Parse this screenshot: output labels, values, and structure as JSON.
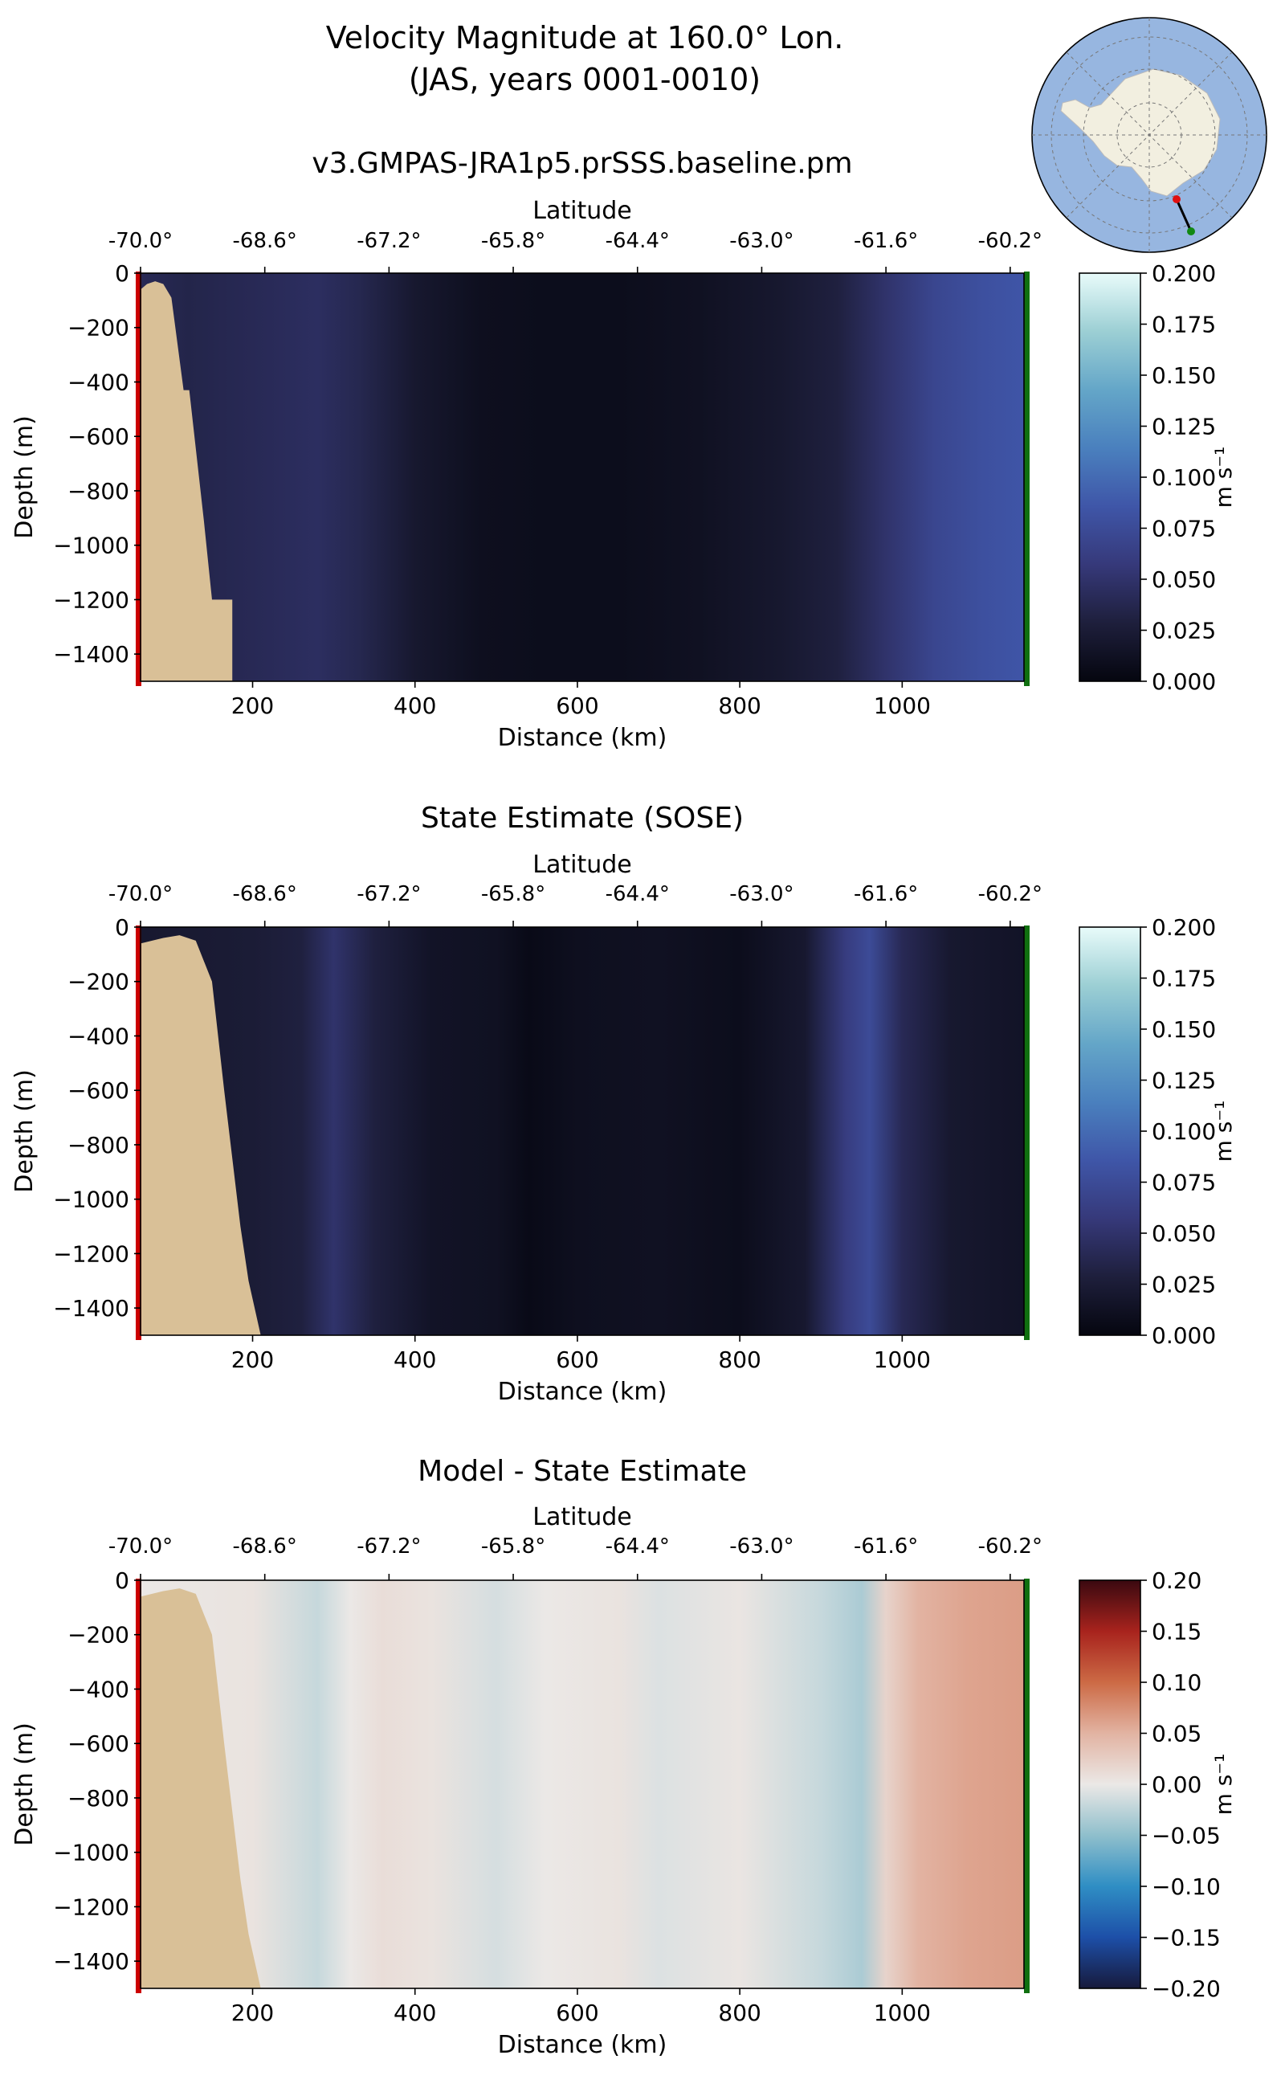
{
  "figure": {
    "title_line1": "Velocity Magnitude at 160.0° Lon.",
    "title_line2": "(JAS, years 0001-0010)"
  },
  "inset_map": {
    "description_icon": "antarctica-polar-map-icon",
    "ocean_color": "#97b6e0",
    "land_color": "#f2efe0",
    "start_marker_color": "#e01010",
    "end_marker_color": "#118811"
  },
  "colors": {
    "bathymetry": "#d9c097",
    "start_edge": "#cc0000",
    "end_edge": "#107010"
  },
  "chart_data": [
    {
      "type": "heatmap",
      "name": "model",
      "title": "v3.GMPAS-JRA1p5.prSSS.baseline.pm",
      "xlabel": "Distance (km)",
      "ylabel": "Depth (m)",
      "top_xlabel": "Latitude",
      "xlim": [
        62,
        1150
      ],
      "ylim": [
        -1500,
        0
      ],
      "x_ticks": [
        200,
        400,
        600,
        800,
        1000
      ],
      "x_tick_labels": [
        "200",
        "400",
        "600",
        "800",
        "1000"
      ],
      "y_ticks": [
        0,
        -200,
        -400,
        -600,
        -800,
        -1000,
        -1200,
        -1400
      ],
      "y_tick_labels": [
        "0",
        "−200",
        "−400",
        "−600",
        "−800",
        "−1000",
        "−1200",
        "−1400"
      ],
      "lat_ticks": [
        62,
        215,
        368,
        521,
        674,
        827,
        980,
        1133
      ],
      "lat_tick_labels": [
        "-70.0°",
        "-68.6°",
        "-67.2°",
        "-65.8°",
        "-64.4°",
        "-63.0°",
        "-61.6°",
        "-60.2°"
      ],
      "colorbar": {
        "label": "m s⁻¹",
        "vmin": 0.0,
        "vmax": 0.2,
        "ticks": [
          "0.200",
          "0.175",
          "0.150",
          "0.125",
          "0.100",
          "0.075",
          "0.050",
          "0.025",
          "0.000"
        ],
        "stops": [
          "#05060f",
          "#1e1f3c",
          "#36397a",
          "#3f56a8",
          "#4a80be",
          "#64a6c8",
          "#9ccfd4",
          "#e8fbfa"
        ]
      },
      "profile_x": [
        62,
        120,
        200,
        280,
        330,
        400,
        480,
        560,
        650,
        750,
        850,
        920,
        980,
        1040,
        1100,
        1150
      ],
      "profile_values": [
        0.04,
        0.035,
        0.04,
        0.045,
        0.038,
        0.02,
        0.01,
        0.008,
        0.008,
        0.012,
        0.02,
        0.03,
        0.05,
        0.07,
        0.08,
        0.085
      ],
      "bathymetry_x": [
        62,
        70,
        80,
        90,
        100,
        115,
        122,
        140,
        150,
        160,
        175,
        175
      ],
      "bathymetry_depth": [
        -60,
        -40,
        -30,
        -40,
        -90,
        -430,
        -430,
        -910,
        -1200,
        -1200,
        -1200,
        -1500
      ]
    },
    {
      "type": "heatmap",
      "name": "sose",
      "title": "State Estimate (SOSE)",
      "xlabel": "Distance (km)",
      "ylabel": "Depth (m)",
      "top_xlabel": "Latitude",
      "xlim": [
        62,
        1150
      ],
      "ylim": [
        -1500,
        0
      ],
      "x_ticks": [
        200,
        400,
        600,
        800,
        1000
      ],
      "x_tick_labels": [
        "200",
        "400",
        "600",
        "800",
        "1000"
      ],
      "y_ticks": [
        0,
        -200,
        -400,
        -600,
        -800,
        -1000,
        -1200,
        -1400
      ],
      "y_tick_labels": [
        "0",
        "−200",
        "−400",
        "−600",
        "−800",
        "−1000",
        "−1200",
        "−1400"
      ],
      "lat_ticks": [
        62,
        215,
        368,
        521,
        674,
        827,
        980,
        1133
      ],
      "lat_tick_labels": [
        "-70.0°",
        "-68.6°",
        "-67.2°",
        "-65.8°",
        "-64.4°",
        "-63.0°",
        "-61.6°",
        "-60.2°"
      ],
      "colorbar": {
        "label": "m s⁻¹",
        "vmin": 0.0,
        "vmax": 0.2,
        "ticks": [
          "0.200",
          "0.175",
          "0.150",
          "0.125",
          "0.100",
          "0.075",
          "0.050",
          "0.025",
          "0.000"
        ],
        "stops": [
          "#05060f",
          "#1e1f3c",
          "#36397a",
          "#3f56a8",
          "#4a80be",
          "#64a6c8",
          "#9ccfd4",
          "#e8fbfa"
        ]
      },
      "profile_x": [
        62,
        200,
        260,
        300,
        350,
        420,
        500,
        540,
        600,
        700,
        800,
        880,
        930,
        960,
        1000,
        1060,
        1150
      ],
      "profile_values": [
        0.02,
        0.025,
        0.03,
        0.05,
        0.03,
        0.015,
        0.012,
        0.005,
        0.01,
        0.012,
        0.008,
        0.02,
        0.06,
        0.075,
        0.04,
        0.02,
        0.015
      ],
      "bathymetry_x": [
        62,
        90,
        110,
        130,
        150,
        165,
        175,
        185,
        195,
        210,
        210
      ],
      "bathymetry_depth": [
        -60,
        -40,
        -30,
        -50,
        -200,
        -600,
        -850,
        -1100,
        -1300,
        -1500,
        -1500
      ]
    },
    {
      "type": "heatmap",
      "name": "difference",
      "title": "Model - State Estimate",
      "xlabel": "Distance (km)",
      "ylabel": "Depth (m)",
      "top_xlabel": "Latitude",
      "xlim": [
        62,
        1150
      ],
      "ylim": [
        -1500,
        0
      ],
      "x_ticks": [
        200,
        400,
        600,
        800,
        1000
      ],
      "x_tick_labels": [
        "200",
        "400",
        "600",
        "800",
        "1000"
      ],
      "y_ticks": [
        0,
        -200,
        -400,
        -600,
        -800,
        -1000,
        -1200,
        -1400
      ],
      "y_tick_labels": [
        "0",
        "−200",
        "−400",
        "−600",
        "−800",
        "−1000",
        "−1200",
        "−1400"
      ],
      "lat_ticks": [
        62,
        215,
        368,
        521,
        674,
        827,
        980,
        1133
      ],
      "lat_tick_labels": [
        "-70.0°",
        "-68.6°",
        "-67.2°",
        "-65.8°",
        "-64.4°",
        "-63.0°",
        "-61.6°",
        "-60.2°"
      ],
      "colorbar": {
        "label": "m s⁻¹",
        "vmin": -0.2,
        "vmax": 0.2,
        "ticks": [
          "0.20",
          "0.15",
          "0.10",
          "0.05",
          "0.00",
          "−0.05",
          "−0.10",
          "−0.15",
          "−0.20"
        ],
        "stops": [
          "#171a3c",
          "#1d4fa8",
          "#2f8ec4",
          "#8fbfcc",
          "#ebe8e6",
          "#e2b3a2",
          "#cc6a45",
          "#a8231d",
          "#3a0910"
        ]
      },
      "profile_x": [
        62,
        200,
        280,
        320,
        360,
        420,
        500,
        560,
        650,
        700,
        800,
        900,
        950,
        980,
        1020,
        1080,
        1150
      ],
      "profile_values": [
        0.0,
        0.005,
        -0.02,
        0.0,
        0.01,
        0.005,
        -0.012,
        0.0,
        0.005,
        -0.008,
        0.003,
        -0.02,
        -0.035,
        0.02,
        0.05,
        0.06,
        0.065
      ],
      "bathymetry_x": [
        62,
        90,
        110,
        130,
        150,
        165,
        175,
        185,
        195,
        210,
        210
      ],
      "bathymetry_depth": [
        -60,
        -40,
        -30,
        -50,
        -200,
        -600,
        -850,
        -1100,
        -1300,
        -1500,
        -1500
      ]
    }
  ]
}
